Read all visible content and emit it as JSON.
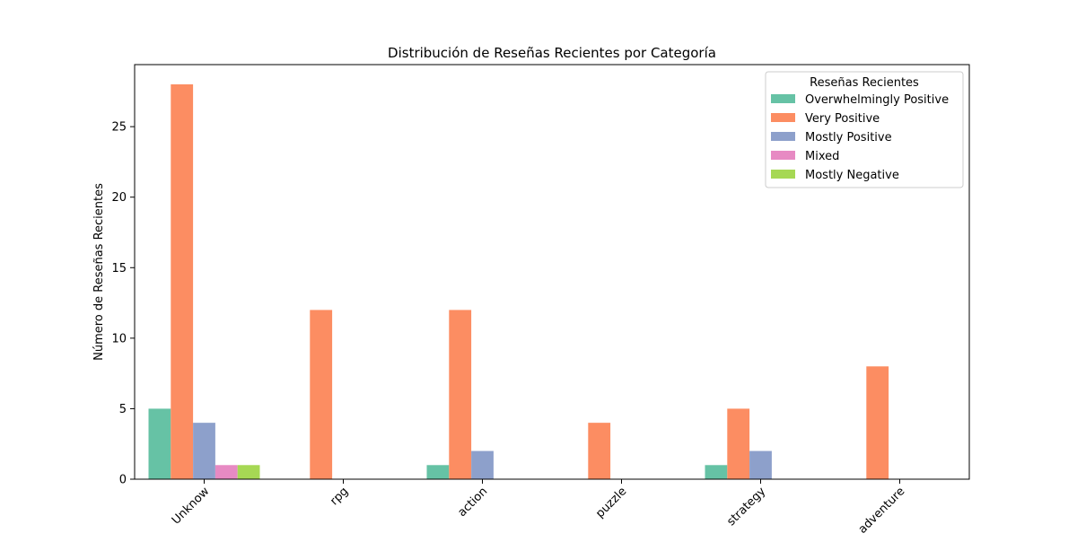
{
  "chart_data": {
    "type": "bar",
    "title": "Distribución de Reseñas Recientes por Categoría",
    "xlabel": "",
    "ylabel": "Número de Reseñas Recientes",
    "ylim": [
      0,
      29.4
    ],
    "yticks": [
      0,
      5,
      10,
      15,
      20,
      25
    ],
    "grid": false,
    "legend_position": "top-right",
    "legend_title": "Reseñas Recientes",
    "categories": [
      "Unknow",
      "rpg",
      "action",
      "puzzle",
      "strategy",
      "adventure"
    ],
    "series": [
      {
        "name": "Overwhelmingly Positive",
        "color": "#66c2a5",
        "values": [
          5,
          0,
          1,
          0,
          1,
          0
        ]
      },
      {
        "name": "Very Positive",
        "color": "#fc8d62",
        "values": [
          28,
          12,
          12,
          4,
          5,
          8
        ]
      },
      {
        "name": "Mostly Positive",
        "color": "#8da0cb",
        "values": [
          4,
          0,
          2,
          0,
          2,
          0
        ]
      },
      {
        "name": "Mixed",
        "color": "#e78ac3",
        "values": [
          1,
          0,
          0,
          0,
          0,
          0
        ]
      },
      {
        "name": "Mostly Negative",
        "color": "#a6d854",
        "values": [
          1,
          0,
          0,
          0,
          0,
          0
        ]
      }
    ]
  }
}
